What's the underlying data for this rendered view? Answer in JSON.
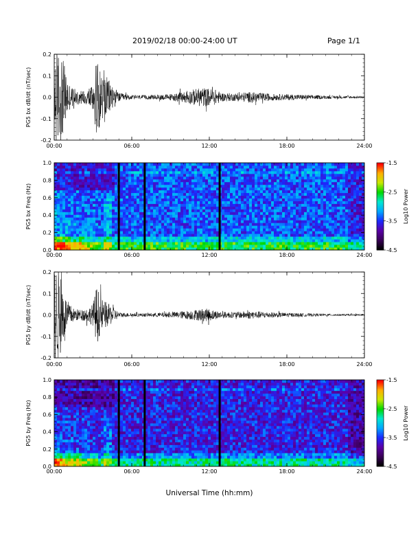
{
  "header": {
    "date_range": "2019/02/18  00:00-24:00 UT",
    "page": "Page 1/1"
  },
  "footer": {
    "xlabel": "Universal Time (hh:mm)"
  },
  "colormap": {
    "stops": [
      "#000000",
      "#3a0058",
      "#5a00a8",
      "#1a2aff",
      "#00a8ff",
      "#00e8d0",
      "#00d800",
      "#c8e800",
      "#ffb000",
      "#ff0000"
    ]
  },
  "chart_data": [
    {
      "type": "line",
      "ylabel": "PG5 bx dB/dt (nT/sec)",
      "xlim": [
        0,
        24
      ],
      "ylim": [
        -0.2,
        0.2
      ],
      "yticks": [
        -0.2,
        -0.1,
        0.0,
        0.1,
        0.2
      ],
      "yticklabels": [
        "-0.2",
        "-0.1",
        "0.0",
        "0.1",
        "0.2"
      ],
      "xticks": [
        0,
        6,
        12,
        18,
        24
      ],
      "xticklabels": [
        "00:00",
        "06:00",
        "12:00",
        "18:00",
        "24:00"
      ],
      "series": [
        {
          "x": [
            0.0,
            0.3,
            0.6,
            0.9,
            1.2,
            1.5,
            2.0,
            2.5,
            3.0,
            3.3,
            3.6,
            4.0,
            4.5,
            5.0,
            6.0,
            7.0,
            8.0,
            9.0,
            10.0,
            11.0,
            11.5,
            12.0,
            12.5,
            13.0,
            14.0,
            15.0,
            16.0,
            17.0,
            18.0,
            19.0,
            20.0,
            21.0,
            22.0,
            23.0,
            24.0
          ],
          "amplitude": [
            0.22,
            0.22,
            0.2,
            0.12,
            0.06,
            0.04,
            0.03,
            0.035,
            0.07,
            0.18,
            0.12,
            0.1,
            0.06,
            0.02,
            0.01,
            0.01,
            0.012,
            0.015,
            0.025,
            0.04,
            0.045,
            0.04,
            0.035,
            0.02,
            0.018,
            0.025,
            0.02,
            0.015,
            0.014,
            0.012,
            0.01,
            0.008,
            0.007,
            0.006,
            0.006
          ]
        }
      ]
    },
    {
      "type": "heatmap",
      "ylabel": "PG5 bx Freq (Hz)",
      "xlim": [
        0,
        24
      ],
      "ylim": [
        0.0,
        1.0
      ],
      "yticks": [
        0.0,
        0.2,
        0.4,
        0.6,
        0.8,
        1.0
      ],
      "yticklabels": [
        "0.0",
        "0.2",
        "0.4",
        "0.6",
        "0.8",
        "1.0"
      ],
      "xticks": [
        0,
        6,
        12,
        18,
        24
      ],
      "xticklabels": [
        "00:00",
        "06:00",
        "12:00",
        "18:00",
        "24:00"
      ],
      "colorbar": {
        "label": "Log10 Power",
        "range": [
          -4.5,
          -1.5
        ],
        "ticks": [
          "-1.5",
          "-2.5",
          "-3.5",
          "-4.5"
        ]
      },
      "data_gaps_hours": [
        5.0,
        7.0,
        12.8
      ],
      "features": "broadband power below 0.1 Hz, strongest 00:00-04:00; background near -3.5 log10 power; harmonic bands near 0.85-0.95 Hz"
    },
    {
      "type": "line",
      "ylabel": "PG5 by dB/dt (nT/sec)",
      "xlim": [
        0,
        24
      ],
      "ylim": [
        -0.2,
        0.2
      ],
      "yticks": [
        -0.2,
        -0.1,
        0.0,
        0.1,
        0.2
      ],
      "yticklabels": [
        "-0.2",
        "-0.1",
        "0.0",
        "0.1",
        "0.2"
      ],
      "xticks": [
        0,
        6,
        12,
        18,
        24
      ],
      "xticklabels": [
        "00:00",
        "06:00",
        "12:00",
        "18:00",
        "24:00"
      ],
      "series": [
        {
          "x": [
            0.0,
            0.3,
            0.6,
            0.9,
            1.2,
            1.5,
            2.0,
            2.5,
            3.0,
            3.3,
            3.6,
            4.0,
            4.5,
            5.0,
            6.0,
            7.0,
            8.0,
            9.0,
            10.0,
            11.0,
            11.5,
            12.0,
            12.5,
            13.0,
            14.0,
            15.0,
            16.0,
            17.0,
            18.0,
            19.0,
            20.0,
            21.0,
            22.0,
            23.0,
            24.0
          ],
          "amplitude": [
            0.22,
            0.22,
            0.16,
            0.08,
            0.05,
            0.03,
            0.025,
            0.03,
            0.05,
            0.14,
            0.08,
            0.06,
            0.04,
            0.012,
            0.008,
            0.008,
            0.01,
            0.012,
            0.018,
            0.025,
            0.03,
            0.028,
            0.02,
            0.015,
            0.014,
            0.018,
            0.016,
            0.012,
            0.01,
            0.008,
            0.007,
            0.006,
            0.005,
            0.005,
            0.005
          ]
        }
      ]
    },
    {
      "type": "heatmap",
      "ylabel": "PG5 by Freq (Hz)",
      "xlim": [
        0,
        24
      ],
      "ylim": [
        0.0,
        1.0
      ],
      "yticks": [
        0.0,
        0.2,
        0.4,
        0.6,
        0.8,
        1.0
      ],
      "yticklabels": [
        "0.0",
        "0.2",
        "0.4",
        "0.6",
        "0.8",
        "1.0"
      ],
      "xticks": [
        0,
        6,
        12,
        18,
        24
      ],
      "xticklabels": [
        "00:00",
        "06:00",
        "12:00",
        "18:00",
        "24:00"
      ],
      "colorbar": {
        "label": "Log10 Power",
        "range": [
          -4.5,
          -1.5
        ],
        "ticks": [
          "-1.5",
          "-2.5",
          "-3.5",
          "-4.5"
        ]
      },
      "data_gaps_hours": [
        5.0,
        7.0,
        12.8
      ],
      "features": "broadband power below 0.1 Hz, strongest 00:00-04:00; background near -4.0 log10 power; harmonic bands near 0.85-0.95 Hz"
    }
  ]
}
